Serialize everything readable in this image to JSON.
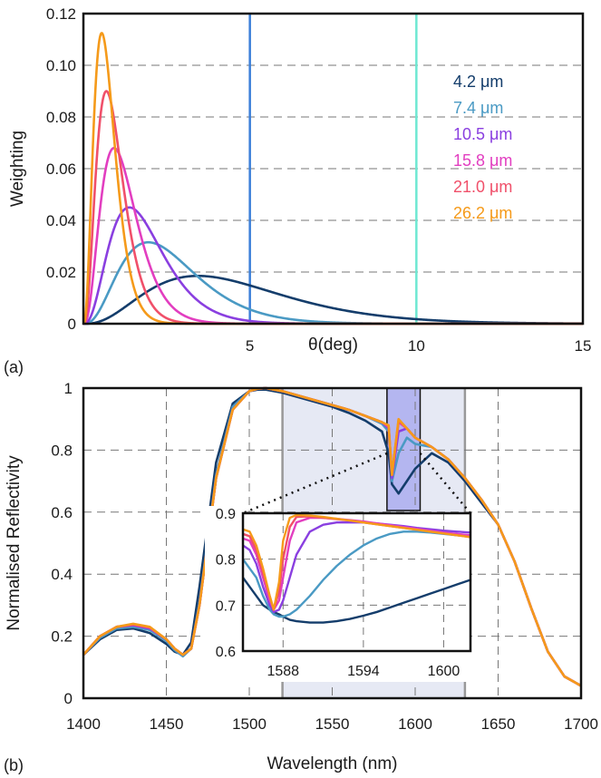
{
  "chart_data": [
    {
      "panel": "(a)",
      "type": "line",
      "xlabel": "θ(deg)",
      "ylabel": "Weighting",
      "xlim": [
        0,
        15
      ],
      "ylim": [
        0,
        0.12
      ],
      "xticks": [
        5,
        10,
        15
      ],
      "xtick_labels": [
        "5",
        "10",
        "15"
      ],
      "yticks": [
        0,
        0.02,
        0.04,
        0.06,
        0.08,
        0.1,
        0.12
      ],
      "ytick_labels": [
        "0",
        "0.02",
        "0.04",
        "0.06",
        "0.08",
        "0.10",
        "0.12"
      ],
      "grid": "horizontal dashed",
      "vertical_lines": [
        {
          "x": 5,
          "color": "#3b7fd9"
        },
        {
          "x": 10,
          "color": "#6ee8d2"
        }
      ],
      "legend_position": "right",
      "series": [
        {
          "name": "4.2 μm",
          "color": "#143d6b",
          "peak_x": 3.44,
          "peak_y": 0.0185
        },
        {
          "name": "7.4 μm",
          "color": "#4a9ac4",
          "peak_x": 1.95,
          "peak_y": 0.0315
        },
        {
          "name": "10.5 μm",
          "color": "#8a3fe0",
          "peak_x": 1.38,
          "peak_y": 0.045
        },
        {
          "name": "15.8 μm",
          "color": "#e23ec0",
          "peak_x": 0.92,
          "peak_y": 0.068
        },
        {
          "name": "21.0 μm",
          "color": "#f0506a",
          "peak_x": 0.69,
          "peak_y": 0.09
        },
        {
          "name": "26.2 μm",
          "color": "#f59a1a",
          "peak_x": 0.55,
          "peak_y": 0.1125
        }
      ]
    },
    {
      "panel": "(b)",
      "type": "line",
      "xlabel": "Wavelength (nm)",
      "ylabel": "Normalised Reflectivity",
      "xlim": [
        1400,
        1700
      ],
      "ylim": [
        0,
        1
      ],
      "xticks": [
        1400,
        1450,
        1500,
        1550,
        1600,
        1650,
        1700
      ],
      "xtick_labels": [
        "1400",
        "1450",
        "1500",
        "1550",
        "1600",
        "1650",
        "1700"
      ],
      "yticks": [
        0,
        0.2,
        0.4,
        0.6,
        0.8,
        1
      ],
      "ytick_labels": [
        "0",
        "0.2",
        "0.4",
        "0.6",
        "0.8",
        "1"
      ],
      "grid": "dashed",
      "shaded_band": [
        1520,
        1630
      ],
      "highlight_band": [
        1583,
        1603
      ],
      "series_x": [
        1400,
        1410,
        1420,
        1430,
        1440,
        1450,
        1455,
        1460,
        1465,
        1470,
        1480,
        1490,
        1500,
        1505,
        1510,
        1520,
        1530,
        1540,
        1550,
        1560,
        1570,
        1580,
        1584,
        1586,
        1590,
        1595,
        1600,
        1610,
        1620,
        1630,
        1640,
        1650,
        1660,
        1670,
        1680,
        1690,
        1700
      ],
      "series": [
        {
          "name": "4.2 μm",
          "color": "#143d6b",
          "values": [
            0.14,
            0.19,
            0.22,
            0.225,
            0.21,
            0.175,
            0.15,
            0.14,
            0.18,
            0.36,
            0.76,
            0.95,
            0.99,
            0.995,
            0.995,
            0.985,
            0.97,
            0.955,
            0.94,
            0.92,
            0.895,
            0.86,
            0.79,
            0.69,
            0.66,
            0.7,
            0.74,
            0.79,
            0.76,
            0.7,
            0.63,
            0.56,
            0.44,
            0.29,
            0.15,
            0.07,
            0.04
          ]
        },
        {
          "name": "7.4 μm",
          "color": "#4a9ac4",
          "values": [
            0.14,
            0.195,
            0.225,
            0.23,
            0.22,
            0.185,
            0.155,
            0.135,
            0.16,
            0.31,
            0.72,
            0.94,
            0.99,
            0.998,
            1.0,
            0.99,
            0.975,
            0.96,
            0.945,
            0.93,
            0.91,
            0.885,
            0.86,
            0.7,
            0.79,
            0.84,
            0.82,
            0.81,
            0.77,
            0.71,
            0.64,
            0.56,
            0.44,
            0.29,
            0.15,
            0.07,
            0.04
          ]
        },
        {
          "name": "10.5 μm",
          "color": "#8a3fe0",
          "values": [
            0.14,
            0.2,
            0.23,
            0.235,
            0.225,
            0.19,
            0.16,
            0.14,
            0.16,
            0.3,
            0.71,
            0.93,
            0.99,
            0.998,
            1.0,
            0.99,
            0.975,
            0.96,
            0.945,
            0.93,
            0.91,
            0.89,
            0.87,
            0.71,
            0.86,
            0.87,
            0.84,
            0.81,
            0.77,
            0.71,
            0.64,
            0.56,
            0.44,
            0.29,
            0.15,
            0.07,
            0.04
          ]
        },
        {
          "name": "15.8 μm",
          "color": "#e23ec0",
          "values": [
            0.14,
            0.2,
            0.23,
            0.237,
            0.227,
            0.19,
            0.16,
            0.14,
            0.16,
            0.3,
            0.71,
            0.93,
            0.99,
            0.998,
            1.0,
            0.99,
            0.975,
            0.96,
            0.945,
            0.93,
            0.91,
            0.89,
            0.875,
            0.72,
            0.89,
            0.87,
            0.84,
            0.81,
            0.77,
            0.71,
            0.64,
            0.56,
            0.44,
            0.29,
            0.15,
            0.07,
            0.04
          ]
        },
        {
          "name": "21.0 μm",
          "color": "#f0506a",
          "values": [
            0.14,
            0.2,
            0.23,
            0.238,
            0.228,
            0.19,
            0.16,
            0.14,
            0.16,
            0.3,
            0.71,
            0.93,
            0.99,
            0.998,
            1.0,
            0.99,
            0.975,
            0.96,
            0.945,
            0.93,
            0.91,
            0.89,
            0.877,
            0.72,
            0.895,
            0.87,
            0.84,
            0.81,
            0.77,
            0.71,
            0.64,
            0.56,
            0.44,
            0.29,
            0.15,
            0.07,
            0.04
          ]
        },
        {
          "name": "26.2 μm",
          "color": "#f59a1a",
          "values": [
            0.14,
            0.2,
            0.23,
            0.24,
            0.23,
            0.19,
            0.16,
            0.14,
            0.16,
            0.3,
            0.71,
            0.93,
            0.99,
            0.998,
            1.0,
            0.99,
            0.975,
            0.96,
            0.945,
            0.93,
            0.91,
            0.89,
            0.88,
            0.72,
            0.9,
            0.87,
            0.84,
            0.81,
            0.77,
            0.71,
            0.64,
            0.56,
            0.44,
            0.29,
            0.15,
            0.07,
            0.04
          ]
        }
      ]
    },
    {
      "panel": "(b) inset",
      "type": "line",
      "xlim": [
        1585,
        1602
      ],
      "ylim": [
        0.6,
        0.9
      ],
      "xticks": [
        1588,
        1594,
        1600
      ],
      "xtick_labels": [
        "1588",
        "1594",
        "1600"
      ],
      "yticks": [
        0.6,
        0.7,
        0.8,
        0.9
      ],
      "ytick_labels": [
        "0.6",
        "0.7",
        "0.8",
        "0.9"
      ],
      "grid": "dashed",
      "series_x": [
        1585,
        1585.5,
        1586,
        1586.5,
        1587,
        1587.3,
        1587.7,
        1588,
        1588.5,
        1589,
        1590,
        1591,
        1592,
        1593,
        1594,
        1595,
        1596,
        1597,
        1598,
        1599,
        1600,
        1601,
        1602
      ],
      "series": [
        {
          "name": "4.2 μm",
          "color": "#143d6b",
          "values": [
            0.76,
            0.74,
            0.72,
            0.7,
            0.69,
            0.685,
            0.68,
            0.675,
            0.668,
            0.665,
            0.662,
            0.662,
            0.665,
            0.67,
            0.677,
            0.685,
            0.695,
            0.705,
            0.715,
            0.725,
            0.735,
            0.745,
            0.755
          ]
        },
        {
          "name": "7.4 μm",
          "color": "#4a9ac4",
          "values": [
            0.8,
            0.78,
            0.76,
            0.72,
            0.69,
            0.68,
            0.675,
            0.675,
            0.68,
            0.69,
            0.72,
            0.755,
            0.785,
            0.81,
            0.83,
            0.845,
            0.855,
            0.86,
            0.86,
            0.858,
            0.855,
            0.852,
            0.85
          ]
        },
        {
          "name": "10.5 μm",
          "color": "#8a3fe0",
          "values": [
            0.83,
            0.82,
            0.79,
            0.74,
            0.7,
            0.685,
            0.69,
            0.71,
            0.76,
            0.81,
            0.86,
            0.875,
            0.88,
            0.88,
            0.88,
            0.878,
            0.875,
            0.872,
            0.868,
            0.865,
            0.862,
            0.86,
            0.858
          ]
        },
        {
          "name": "15.8 μm",
          "color": "#e23ec0",
          "values": [
            0.845,
            0.84,
            0.81,
            0.76,
            0.71,
            0.69,
            0.71,
            0.76,
            0.84,
            0.88,
            0.89,
            0.89,
            0.888,
            0.885,
            0.882,
            0.878,
            0.874,
            0.87,
            0.866,
            0.862,
            0.858,
            0.855,
            0.852
          ]
        },
        {
          "name": "21.0 μm",
          "color": "#f0506a",
          "values": [
            0.855,
            0.85,
            0.82,
            0.77,
            0.72,
            0.69,
            0.73,
            0.8,
            0.87,
            0.892,
            0.893,
            0.89,
            0.887,
            0.884,
            0.88,
            0.876,
            0.872,
            0.868,
            0.864,
            0.86,
            0.856,
            0.852,
            0.848
          ]
        },
        {
          "name": "26.2 μm",
          "color": "#f59a1a",
          "values": [
            0.865,
            0.86,
            0.83,
            0.78,
            0.72,
            0.69,
            0.75,
            0.84,
            0.89,
            0.896,
            0.895,
            0.892,
            0.888,
            0.884,
            0.88,
            0.876,
            0.872,
            0.868,
            0.864,
            0.86,
            0.856,
            0.852,
            0.848
          ]
        }
      ]
    }
  ],
  "labels": {
    "panel_a": "(a)",
    "panel_b": "(b)"
  }
}
